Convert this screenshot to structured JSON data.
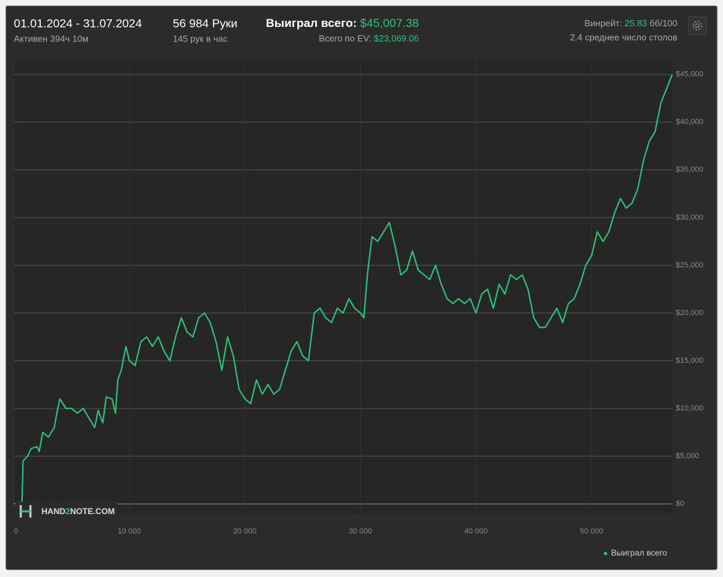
{
  "header": {
    "period": "01.01.2024 - 31.07.2024",
    "active": "Активен 394ч 10м",
    "hands": "56 984 Руки",
    "hands_per_hour": "145 рук в час",
    "won_label": "Выиграл всего:",
    "won_value": "$45,007.38",
    "ev_label": "Всего по EV:",
    "ev_value": "$23,069.06",
    "winrate_label": "Винрейт:",
    "winrate_value": "25.83",
    "winrate_unit": "бб/100",
    "tables": "2.4 среднее число столов"
  },
  "watermark": {
    "left": "HAND",
    "mid": "2",
    "right": "NOTE.COM"
  },
  "chart_data": {
    "type": "line",
    "xlim": [
      0,
      57000
    ],
    "ylim": [
      -1000,
      46500
    ],
    "xticks": [
      0,
      {
        "value": 10000,
        "label": "10 000"
      },
      {
        "value": 20000,
        "label": "20 000"
      },
      {
        "value": 30000,
        "label": "30 000"
      },
      {
        "value": 40000,
        "label": "40 000"
      },
      {
        "value": 50000,
        "label": "50 000"
      }
    ],
    "yticks": [
      {
        "value": 0,
        "label": "$0"
      },
      {
        "value": 5000,
        "label": "$5,000"
      },
      {
        "value": 10000,
        "label": "$10,000"
      },
      {
        "value": 15000,
        "label": "$15,000"
      },
      {
        "value": 20000,
        "label": "$20,000"
      },
      {
        "value": 25000,
        "label": "$25,000"
      },
      {
        "value": 30000,
        "label": "$30,000"
      },
      {
        "value": 35000,
        "label": "$35,000"
      },
      {
        "value": 40000,
        "label": "$40,000"
      },
      {
        "value": 45000,
        "label": "$45,000"
      }
    ],
    "grid": true,
    "legend": "bottom-right",
    "x": [
      0,
      500,
      700,
      800,
      1200,
      1500,
      2000,
      2200,
      2500,
      3000,
      3500,
      3800,
      4000,
      4500,
      5000,
      5500,
      6000,
      6500,
      7000,
      7300,
      7700,
      8000,
      8500,
      8800,
      9000,
      9300,
      9700,
      10000,
      10500,
      11000,
      11500,
      12000,
      12500,
      13000,
      13500,
      14000,
      14500,
      15000,
      15500,
      16000,
      16500,
      17000,
      17500,
      18000,
      18500,
      19000,
      19500,
      20000,
      20500,
      21000,
      21500,
      22000,
      22500,
      23000,
      23500,
      24000,
      24500,
      25000,
      25500,
      26000,
      26500,
      27000,
      27500,
      28000,
      28500,
      29000,
      29500,
      30000,
      30300,
      30600,
      31000,
      31500,
      32000,
      32500,
      33000,
      33500,
      34000,
      34500,
      35000,
      35500,
      36000,
      36500,
      37000,
      37500,
      38000,
      38500,
      39000,
      39500,
      40000,
      40500,
      41000,
      41500,
      42000,
      42500,
      43000,
      43500,
      44000,
      44500,
      45000,
      45500,
      46000,
      46500,
      47000,
      47500,
      48000,
      48500,
      49000,
      49500,
      50000,
      50500,
      51000,
      51500,
      52000,
      52500,
      53000,
      53500,
      54000,
      54500,
      55000,
      55500,
      56000,
      56500,
      56984
    ],
    "series": [
      {
        "name": "Выиграл всего",
        "color": "#2fc27a",
        "values": [
          0,
          200,
          -200,
          4500,
          5000,
          5800,
          6000,
          5500,
          7500,
          7000,
          8000,
          10000,
          11000,
          10000,
          10000,
          9500,
          10000,
          9000,
          8000,
          9800,
          8500,
          11200,
          11000,
          9500,
          13000,
          14000,
          16500,
          15000,
          14500,
          17000,
          17500,
          16500,
          17500,
          16000,
          15000,
          17500,
          19500,
          18000,
          17500,
          19500,
          20000,
          19000,
          17000,
          14000,
          17500,
          15500,
          12000,
          11000,
          10500,
          13000,
          11500,
          12500,
          11500,
          12000,
          14000,
          16000,
          17000,
          15500,
          15000,
          20000,
          20500,
          19500,
          19000,
          20500,
          20000,
          21500,
          20500,
          20000,
          19500,
          24000,
          28000,
          27500,
          28500,
          29500,
          27000,
          24000,
          24500,
          26500,
          24500,
          24000,
          23500,
          25000,
          23000,
          21500,
          21000,
          21500,
          21000,
          21500,
          20000,
          22000,
          22500,
          20500,
          23000,
          22000,
          24000,
          23500,
          24000,
          22500,
          19500,
          18500,
          18500,
          19500,
          20500,
          19000,
          21000,
          21500,
          23000,
          25000,
          26000,
          28500,
          27500,
          28500,
          30500,
          32000,
          31000,
          31500,
          33000,
          36000,
          38000,
          39000,
          42000,
          43500,
          45007.38
        ]
      }
    ]
  }
}
